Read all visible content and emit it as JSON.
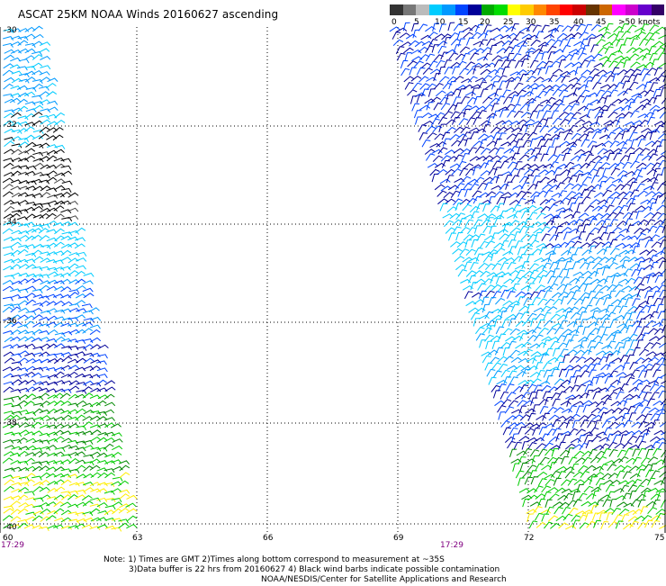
{
  "title": "ASCAT 25KM NOAA Winds 20160627 ascending",
  "legend": {
    "colors": [
      "#333333",
      "#777777",
      "#bbbbbb",
      "#00ccff",
      "#0099ff",
      "#0044ff",
      "#000099",
      "#00aa00",
      "#00dd00",
      "#ffff00",
      "#ffcc00",
      "#ff8800",
      "#ff4400",
      "#ff0000",
      "#cc0000",
      "#663300",
      "#cc6600",
      "#ff00ff",
      "#cc00cc",
      "#6600cc",
      "#330066"
    ],
    "labels": [
      "0",
      "5",
      "10",
      "15",
      "20",
      "25",
      "30",
      "35",
      "40",
      "45",
      ">50 knots"
    ]
  },
  "map": {
    "lat_ticks": [
      "-30",
      "-32",
      "-34",
      "-36",
      "-38",
      "-40"
    ],
    "lon_ticks": [
      "60",
      "63",
      "66",
      "69",
      "72",
      "75"
    ],
    "lat_range": [
      -40,
      -30
    ],
    "lon_range": [
      60,
      75
    ],
    "gridlines": "dotted",
    "pass_times": [
      "17:29",
      "17:29"
    ]
  },
  "notes": {
    "line1": "Note: 1) Times are GMT 2)Times along bottom correspond to measurement at ~35S",
    "line2": "3)Data buffer is 22 hrs from 20160627 4) Black wind barbs indicate possible contamination",
    "line3": "NOAA/NESDIS/Center for Satellite Applications and Research"
  },
  "colors": {
    "grid": "#000000",
    "time_label": "#800080",
    "barb_black": "#000000",
    "barb_cyan": "#00ccff",
    "barb_lightblue": "#0099ff",
    "barb_blue": "#0044ff",
    "barb_navy": "#000099",
    "barb_darkgreen": "#008800",
    "barb_green": "#00cc00",
    "barb_yellow": "#ffee00"
  }
}
